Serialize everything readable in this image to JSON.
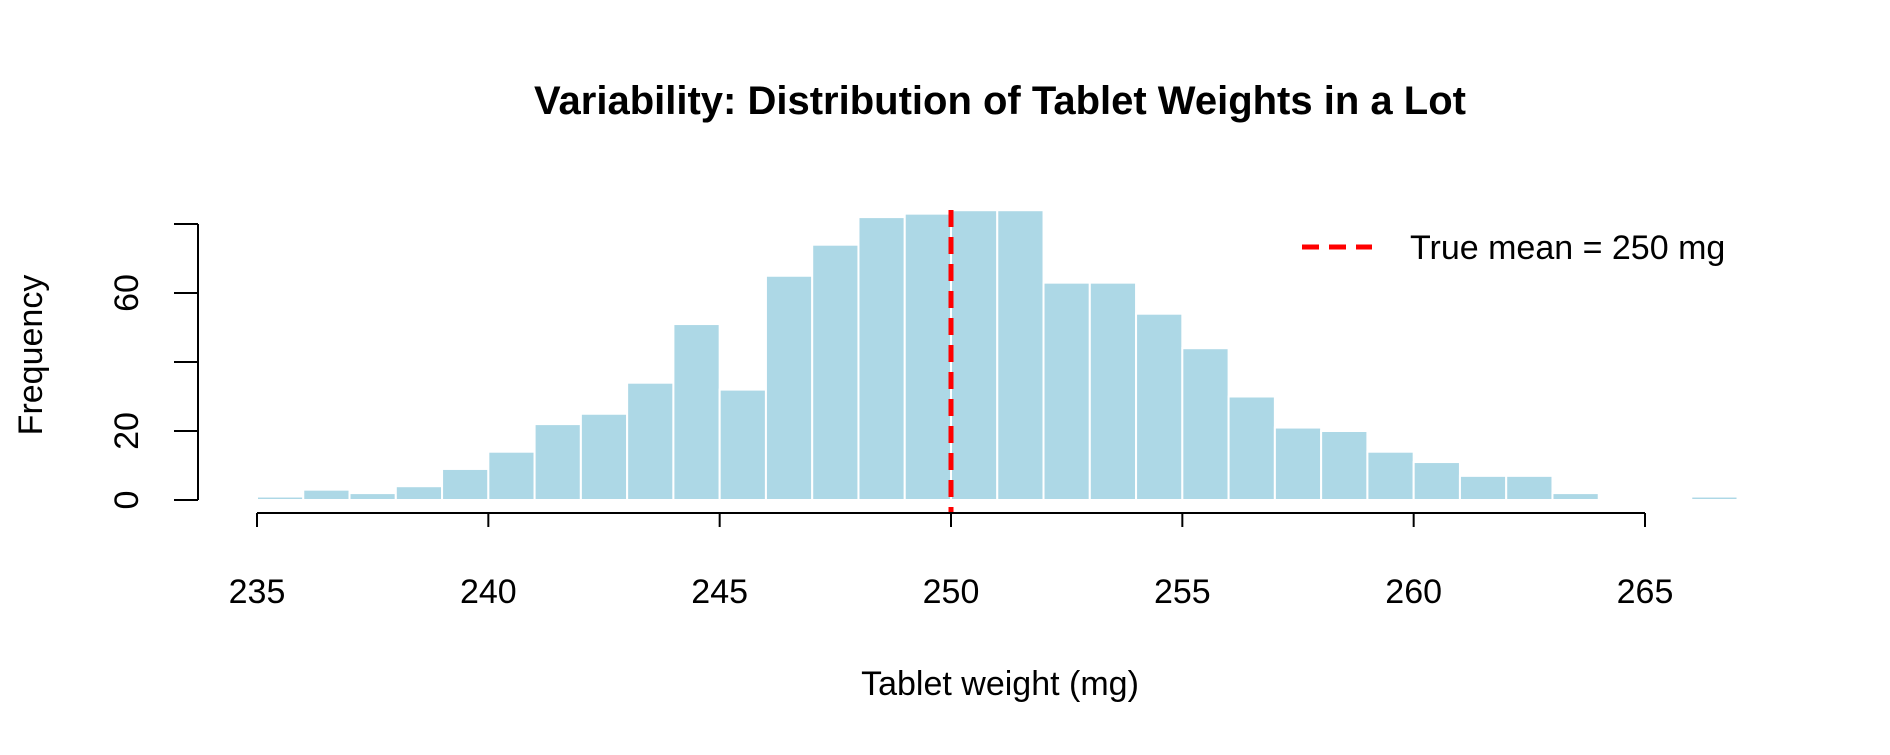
{
  "chart_data": {
    "type": "bar",
    "title": "Variability: Distribution of Tablet Weights in a Lot",
    "xlabel": "Tablet weight (mg)",
    "ylabel": "Frequency",
    "bin_edges": [
      235,
      236,
      237,
      238,
      239,
      240,
      241,
      242,
      243,
      244,
      245,
      246,
      247,
      248,
      249,
      250,
      251,
      252,
      253,
      254,
      255,
      256,
      257,
      258,
      259,
      260,
      261,
      262,
      263,
      264,
      265,
      266,
      267
    ],
    "values": [
      1,
      3,
      2,
      4,
      9,
      14,
      22,
      25,
      34,
      51,
      32,
      65,
      74,
      82,
      83,
      84,
      84,
      63,
      63,
      54,
      44,
      30,
      21,
      20,
      14,
      11,
      7,
      7,
      2,
      0,
      0,
      1
    ],
    "xlim": [
      235,
      265
    ],
    "ylim": [
      0,
      80
    ],
    "x_ticks": [
      235,
      240,
      245,
      250,
      255,
      260,
      265
    ],
    "y_ticks": [
      0,
      20,
      40,
      60,
      80
    ],
    "y_tick_labels": [
      "0",
      "20",
      "",
      "60",
      ""
    ],
    "bar_color": "#add8e6",
    "bar_border_color": "#ffffff",
    "reference_line": {
      "x": 250,
      "color": "#ff0000",
      "style": "dashed"
    },
    "legend": {
      "position": "top-right",
      "entries": [
        {
          "label": "True mean = 250 mg",
          "color": "#ff0000",
          "style": "dashed"
        }
      ]
    },
    "grid": false
  }
}
